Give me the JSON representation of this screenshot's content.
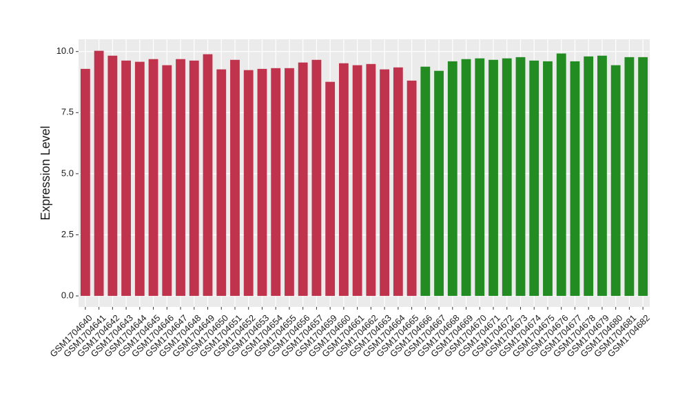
{
  "chart_data": {
    "type": "bar",
    "y_label": "Expression Level",
    "categories": [
      "GSM1704640",
      "GSM1704641",
      "GSM1704642",
      "GSM1704643",
      "GSM1704644",
      "GSM1704645",
      "GSM1704646",
      "GSM1704647",
      "GSM1704648",
      "GSM1704649",
      "GSM1704650",
      "GSM1704651",
      "GSM1704652",
      "GSM1704653",
      "GSM1704654",
      "GSM1704655",
      "GSM1704656",
      "GSM1704657",
      "GSM1704659",
      "GSM1704660",
      "GSM1704661",
      "GSM1704662",
      "GSM1704663",
      "GSM1704664",
      "GSM1704665",
      "GSM1704666",
      "GSM1704667",
      "GSM1704668",
      "GSM1704669",
      "GSM1704670",
      "GSM1704671",
      "GSM1704672",
      "GSM1704673",
      "GSM1704674",
      "GSM1704675",
      "GSM1704676",
      "GSM1704677",
      "GSM1704678",
      "GSM1704679",
      "GSM1704680",
      "GSM1704681",
      "GSM1704682"
    ],
    "values": [
      9.29,
      10.03,
      9.83,
      9.63,
      9.58,
      9.69,
      9.44,
      9.69,
      9.63,
      9.89,
      9.27,
      9.66,
      9.24,
      9.29,
      9.32,
      9.32,
      9.55,
      9.66,
      8.76,
      9.52,
      9.44,
      9.49,
      9.27,
      9.35,
      8.81,
      9.38,
      9.21,
      9.6,
      9.69,
      9.72,
      9.66,
      9.72,
      9.77,
      9.63,
      9.6,
      9.92,
      9.6,
      9.8,
      9.83,
      9.44,
      9.77,
      9.77
    ],
    "colors": [
      "#c0334d",
      "#c0334d",
      "#c0334d",
      "#c0334d",
      "#c0334d",
      "#c0334d",
      "#c0334d",
      "#c0334d",
      "#c0334d",
      "#c0334d",
      "#c0334d",
      "#c0334d",
      "#c0334d",
      "#c0334d",
      "#c0334d",
      "#c0334d",
      "#c0334d",
      "#c0334d",
      "#c0334d",
      "#c0334d",
      "#c0334d",
      "#c0334d",
      "#c0334d",
      "#c0334d",
      "#c0334d",
      "#228b22",
      "#228b22",
      "#228b22",
      "#228b22",
      "#228b22",
      "#228b22",
      "#228b22",
      "#228b22",
      "#228b22",
      "#228b22",
      "#228b22",
      "#228b22",
      "#228b22",
      "#228b22",
      "#228b22",
      "#228b22",
      "#228b22"
    ],
    "ylim": [
      -0.45,
      10.5
    ],
    "yticks": [
      {
        "value": 0,
        "label": "0.0"
      },
      2.5,
      {
        "value": 5,
        "label": "5.0"
      },
      7.5,
      {
        "value": 10,
        "label": "10.0"
      }
    ],
    "grid": true
  }
}
